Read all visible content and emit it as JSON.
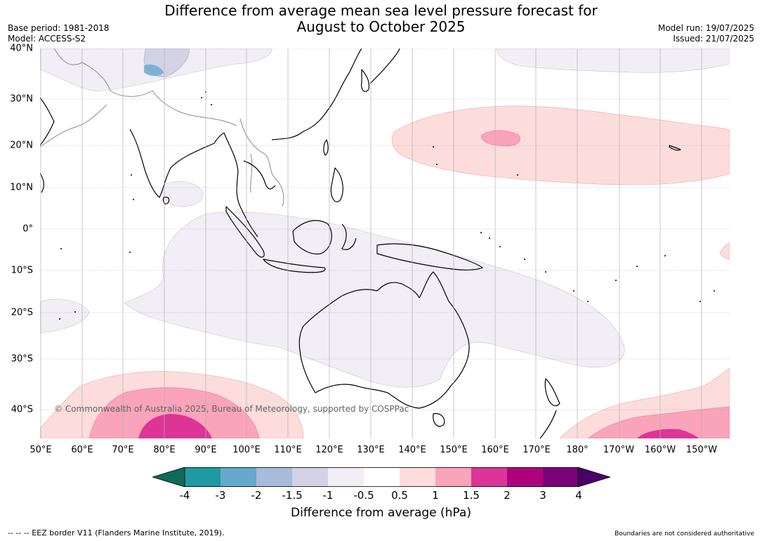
{
  "title": {
    "line1": "Difference from average mean sea level pressure forecast for",
    "line2": "August to October 2025"
  },
  "meta_left": {
    "base_period": "Base period: 1981-2018",
    "model": "Model: ACCESS-S2"
  },
  "meta_right": {
    "model_run": "Model run: 19/07/2025",
    "issued": "Issued: 21/07/2025"
  },
  "map": {
    "copyright": "© Commonwealth of Australia 2025, Bureau of Meteorology, supported by COSPPac",
    "lat_ticks": [
      "40°N",
      "30°N",
      "20°N",
      "10°N",
      "0°",
      "10°S",
      "20°S",
      "30°S",
      "40°S"
    ],
    "lon_ticks": [
      "50°E",
      "60°E",
      "70°E",
      "80°E",
      "90°E",
      "100°E",
      "110°E",
      "120°E",
      "130°E",
      "140°E",
      "150°E",
      "160°E",
      "170°E",
      "180°",
      "170°W",
      "160°W",
      "150°W"
    ]
  },
  "colorbar": {
    "title": "Difference from average (hPa)",
    "labels": [
      "-4",
      "-3",
      "-2",
      "-1.5",
      "-1",
      "-0.5",
      "0.5",
      "1",
      "1.5",
      "2",
      "3",
      "4"
    ],
    "colors": [
      "#0e6b5a",
      "#1f9aa0",
      "#66a9cf",
      "#a8bbd9",
      "#d3d2e5",
      "#f1eef5",
      "#ffffff",
      "#fddcdc",
      "#f9a4ba",
      "#dd3497",
      "#ae017e",
      "#7a0177",
      "#49006a"
    ]
  },
  "footer": {
    "eez": "--  --  -- EEZ border V11 (Flanders Marine Institute, 2019).",
    "boundaries": "Boundaries are not considered authoritative"
  }
}
